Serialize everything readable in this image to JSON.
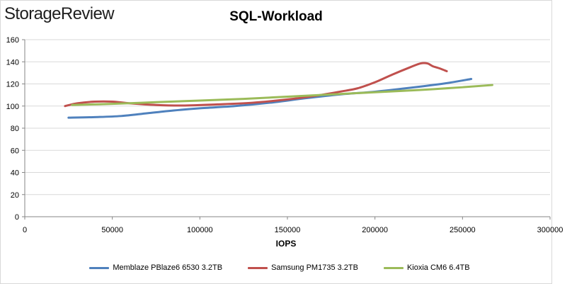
{
  "brand": {
    "logo_text": "StorageReview"
  },
  "chart_data": {
    "type": "line",
    "title": "SQL-Workload",
    "xlabel": "IOPS",
    "ylabel": "",
    "xlim": [
      0,
      300000
    ],
    "ylim": [
      0,
      160
    ],
    "xticks": [
      0,
      50000,
      100000,
      150000,
      200000,
      250000,
      300000
    ],
    "xtick_labels": [
      "0",
      "50000",
      "100000",
      "150000",
      "200000",
      "250000",
      "300000"
    ],
    "yticks": [
      0,
      20,
      40,
      60,
      80,
      100,
      120,
      140,
      160
    ],
    "ytick_labels": [
      "0",
      "20",
      "40",
      "60",
      "80",
      "100",
      "120",
      "140",
      "160"
    ],
    "grid": "horizontal",
    "legend_position": "bottom",
    "series": [
      {
        "name": "Memblaze PBlaze6 6530 3.2TB",
        "color": "#4f81bd",
        "points": [
          [
            25000,
            89.5
          ],
          [
            40000,
            90
          ],
          [
            55000,
            91
          ],
          [
            70000,
            93.5
          ],
          [
            85000,
            96
          ],
          [
            100000,
            98
          ],
          [
            120000,
            100
          ],
          [
            140000,
            103
          ],
          [
            160000,
            107
          ],
          [
            180000,
            110.5
          ],
          [
            200000,
            113
          ],
          [
            220000,
            116.5
          ],
          [
            240000,
            120.5
          ],
          [
            255000,
            124.5
          ]
        ]
      },
      {
        "name": "Samsung PM1735 3.2TB",
        "color": "#c0504d",
        "points": [
          [
            23000,
            100
          ],
          [
            30000,
            102.5
          ],
          [
            40000,
            104
          ],
          [
            50000,
            104
          ],
          [
            60000,
            102.5
          ],
          [
            75000,
            101
          ],
          [
            90000,
            100.5
          ],
          [
            110000,
            101.5
          ],
          [
            130000,
            103
          ],
          [
            150000,
            106
          ],
          [
            165000,
            109
          ],
          [
            180000,
            113
          ],
          [
            190000,
            116
          ],
          [
            200000,
            121.5
          ],
          [
            210000,
            128.5
          ],
          [
            220000,
            135
          ],
          [
            226000,
            138.5
          ],
          [
            230000,
            138.5
          ],
          [
            233000,
            136
          ],
          [
            237000,
            134
          ],
          [
            241000,
            131.5
          ]
        ]
      },
      {
        "name": "Kioxia CM6 6.4TB",
        "color": "#9bbb59",
        "points": [
          [
            27000,
            101
          ],
          [
            50000,
            102
          ],
          [
            75000,
            103.5
          ],
          [
            100000,
            105
          ],
          [
            125000,
            106.5
          ],
          [
            150000,
            108.5
          ],
          [
            175000,
            110.5
          ],
          [
            200000,
            112.5
          ],
          [
            225000,
            114.5
          ],
          [
            250000,
            117
          ],
          [
            267000,
            119
          ]
        ]
      }
    ]
  }
}
